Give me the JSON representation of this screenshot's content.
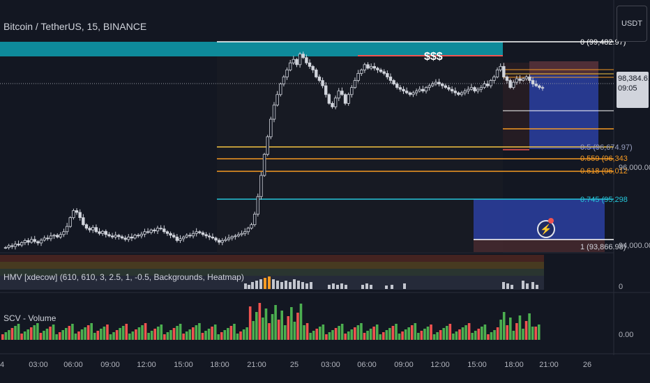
{
  "symbol": "Bitcoin / TetherUS, 15, BINANCE",
  "currency_button": "USDT",
  "last_price": {
    "price": "98,384.61",
    "countdown": "09:05"
  },
  "fib_labels": {
    "level_0": "0 (99,482.97)",
    "level_05": "0.5 (96,674.97)",
    "level_0559": "0.559 (96,343",
    "level_0618": "0.618 (96,012",
    "level_0745": "0.745 (95,298",
    "level_1": "1 (93,866.98)"
  },
  "liquidity_label": "$$$",
  "price_axis": {
    "p96000": "96,000.00",
    "p94000": "94,000.00"
  },
  "indicator1": {
    "title": "HMV [xdecow] (610, 610, 3, 2.5, 1, -0.5, Backgrounds, Heatmap)",
    "axis_value": "0"
  },
  "indicator2": {
    "title": "SCV - Volume",
    "axis_value": "0.00"
  },
  "time_axis": [
    "4",
    "03:00",
    "06:00",
    "09:00",
    "12:00",
    "15:00",
    "18:00",
    "21:00",
    "25",
    "03:00",
    "06:00",
    "09:00",
    "12:00",
    "15:00",
    "18:00",
    "21:00",
    "26"
  ],
  "colors": {
    "background": "#131722",
    "candle": "#d1d4dc",
    "teal_zone": "#0e8a9a",
    "blue_zone": "#2a3d9a",
    "fib_yellow": "#f5c542",
    "fib_orange": "#f59a23",
    "fib_teal": "#26c6da",
    "red_level": "#ef5350",
    "vol_up": "#4caf50",
    "vol_down": "#ef5350"
  },
  "chart_data": {
    "type": "candlestick",
    "y_range": [
      93800,
      99700
    ],
    "closes": [
      93850,
      93900,
      93880,
      93950,
      93920,
      93990,
      94050,
      94000,
      94080,
      94020,
      93980,
      94060,
      94120,
      94100,
      94180,
      94200,
      94150,
      94220,
      94300,
      94450,
      94700,
      94900,
      94850,
      94700,
      94500,
      94400,
      94350,
      94420,
      94300,
      94250,
      94310,
      94220,
      94180,
      94150,
      94200,
      94160,
      94120,
      94080,
      94150,
      94120,
      94200,
      94180,
      94230,
      94300,
      94280,
      94350,
      94320,
      94400,
      94380,
      94300,
      94250,
      94200,
      94150,
      94050,
      94100,
      94150,
      94200,
      94180,
      94250,
      94300,
      94270,
      94220,
      94180,
      94150,
      94120,
      94060,
      94000,
      94050,
      94080,
      94120,
      94160,
      94180,
      94220,
      94250,
      94300,
      94400,
      94500,
      94800,
      95300,
      95900,
      96500,
      97000,
      97500,
      97900,
      98200,
      98500,
      98700,
      98900,
      99100,
      99200,
      99050,
      99350,
      99250,
      99100,
      99000,
      98900,
      98700,
      98600,
      98450,
      98200,
      97950,
      97850,
      98100,
      98300,
      98200,
      97950,
      98200,
      98400,
      98600,
      98800,
      98900,
      99050,
      98950,
      99000,
      98950,
      98900,
      98850,
      98800,
      98700,
      98600,
      98500,
      98400,
      98350,
      98300,
      98250,
      98200,
      98250,
      98300,
      98350,
      98300,
      98400,
      98450,
      98500,
      98550,
      98500,
      98450,
      98400,
      98350,
      98300,
      98250,
      98200,
      98250,
      98300,
      98350,
      98400,
      98300,
      98350,
      98400,
      98500,
      98450,
      98600,
      98700,
      98900,
      99000,
      98700,
      98600,
      98400,
      98550,
      98650,
      98600,
      98650,
      98700,
      98600,
      98500,
      98450,
      98400,
      98380
    ]
  }
}
